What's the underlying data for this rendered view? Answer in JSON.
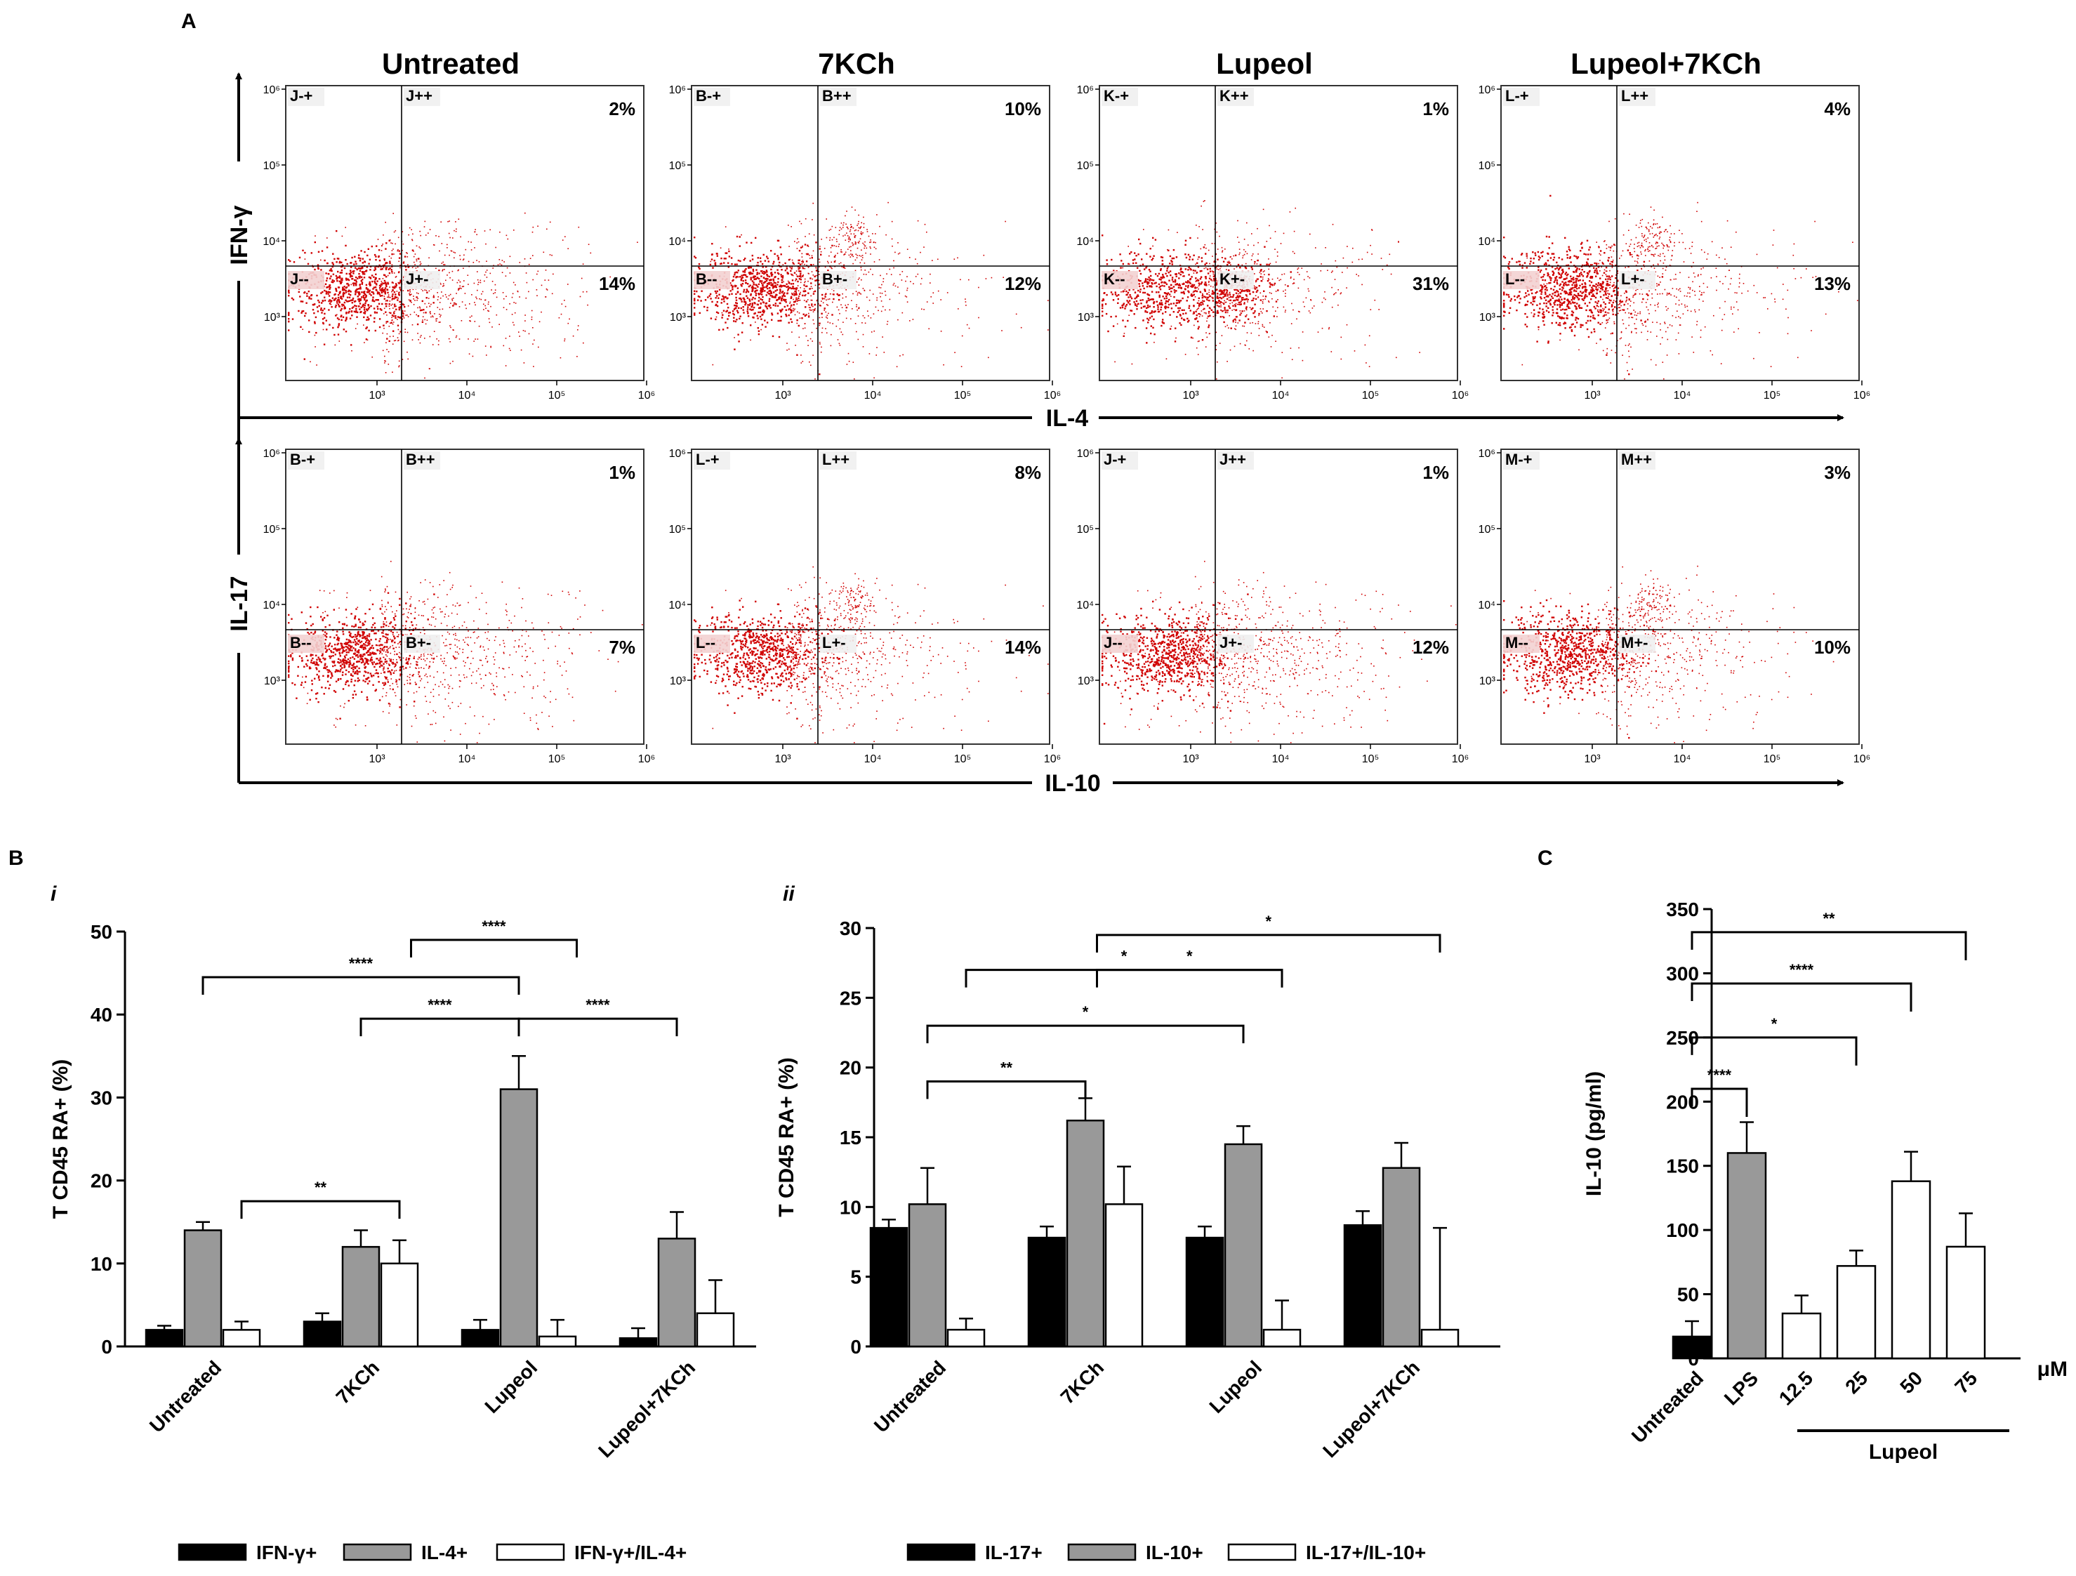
{
  "labels": {
    "A": "A",
    "B": "B",
    "C": "C",
    "i": "i",
    "ii": "ii"
  },
  "colors": {
    "dots": "#d00000",
    "black": "#000000",
    "gray": "#999999",
    "white": "#ffffff"
  },
  "flow": {
    "x_ticks": [
      "10³",
      "10⁴",
      "10⁵",
      "10⁶"
    ],
    "y_ticks": [
      "10⁶",
      "10⁵",
      "10⁴",
      "10³"
    ],
    "conditions": [
      "Untreated",
      "7KCh",
      "Lupeol",
      "Lupeol+7KCh"
    ],
    "rows": [
      {
        "y_label": "IFN-γ",
        "x_label": "IL-4",
        "panels": [
          {
            "quadrants": [
              "J-+",
              "J++",
              "J--",
              "J+-"
            ],
            "ul": "",
            "ur": "2%",
            "lr": "14%",
            "ll": ""
          },
          {
            "quadrants": [
              "B-+",
              "B++",
              "B--",
              "B+-"
            ],
            "ul": "",
            "ur": "10%",
            "lr": "12%",
            "ll": ""
          },
          {
            "quadrants": [
              "K-+",
              "K++",
              "K--",
              "K+-"
            ],
            "ul": "",
            "ur": "1%",
            "lr": "31%",
            "ll": ""
          },
          {
            "quadrants": [
              "L-+",
              "L++",
              "L--",
              "L+-"
            ],
            "ul": "",
            "ur": "4%",
            "lr": "13%",
            "ll": ""
          }
        ]
      },
      {
        "y_label": "IL-17",
        "x_label": "IL-10",
        "panels": [
          {
            "quadrants": [
              "B-+",
              "B++",
              "B--",
              "B+-"
            ],
            "ul": "",
            "ur": "1%",
            "lr": "7%",
            "ll": ""
          },
          {
            "quadrants": [
              "L-+",
              "L++",
              "L--",
              "L+-"
            ],
            "ul": "",
            "ur": "8%",
            "lr": "14%",
            "ll": ""
          },
          {
            "quadrants": [
              "J-+",
              "J++",
              "J--",
              "J+-"
            ],
            "ul": "",
            "ur": "1%",
            "lr": "12%",
            "ll": ""
          },
          {
            "quadrants": [
              "M-+",
              "M++",
              "M--",
              "M+-"
            ],
            "ul": "",
            "ur": "3%",
            "lr": "10%",
            "ll": ""
          }
        ]
      }
    ]
  },
  "chart_data": [
    {
      "id": "Bi",
      "type": "bar",
      "ylabel": "T CD45 RA+ (%)",
      "ylim": [
        0,
        50
      ],
      "yticks": [
        0,
        10,
        20,
        30,
        40,
        50
      ],
      "categories": [
        "Untreated",
        "7KCh",
        "Lupeol",
        "Lupeol+7KCh"
      ],
      "series": [
        {
          "name": "IFN-γ+",
          "color": "#000000",
          "values": [
            2,
            3,
            2,
            1
          ],
          "errors": [
            0.5,
            1,
            1.2,
            1.2
          ]
        },
        {
          "name": "IL-4+",
          "color": "#999999",
          "values": [
            14,
            12,
            31,
            13
          ],
          "errors": [
            1,
            2,
            4,
            3.2
          ]
        },
        {
          "name": "IFN-γ+/IL-4+",
          "color": "#ffffff",
          "values": [
            2,
            10,
            1.2,
            4
          ],
          "errors": [
            1,
            2.8,
            2,
            4
          ]
        }
      ],
      "significance": [
        {
          "text": "**",
          "from": [
            0,
            2
          ],
          "to": [
            1,
            2
          ],
          "y": 17.5
        },
        {
          "text": "****",
          "from": [
            0,
            1
          ],
          "to": [
            2,
            1
          ],
          "y": 44.5
        },
        {
          "text": "****",
          "from": [
            1,
            1
          ],
          "to": [
            2,
            1
          ],
          "y": 39.5
        },
        {
          "text": "****",
          "from": [
            2,
            1
          ],
          "to": [
            3,
            1
          ],
          "y": 39.5
        },
        {
          "text": "****",
          "from": [
            1,
            2.3
          ],
          "to": [
            2,
            2.5
          ],
          "y": 49
        }
      ]
    },
    {
      "id": "Bii",
      "type": "bar",
      "ylabel": "T CD45 RA+ (%)",
      "ylim": [
        0,
        30
      ],
      "yticks": [
        0,
        5,
        10,
        15,
        20,
        25,
        30
      ],
      "categories": [
        "Untreated",
        "7KCh",
        "Lupeol",
        "Lupeol+7KCh"
      ],
      "series": [
        {
          "name": "IL-17+",
          "color": "#000000",
          "values": [
            8.5,
            7.8,
            7.8,
            8.7
          ],
          "errors": [
            0.6,
            0.8,
            0.8,
            1
          ]
        },
        {
          "name": "IL-10+",
          "color": "#999999",
          "values": [
            10.2,
            16.2,
            14.5,
            12.8
          ],
          "errors": [
            2.6,
            1.6,
            1.3,
            1.8
          ]
        },
        {
          "name": "IL-17+/IL-10+",
          "color": "#ffffff",
          "values": [
            1.2,
            10.2,
            1.2,
            1.2
          ],
          "errors": [
            0.8,
            2.7,
            2.1,
            7.3
          ]
        }
      ],
      "significance": [
        {
          "text": "**",
          "from": [
            0,
            1
          ],
          "to": [
            1,
            1
          ],
          "y": 19
        },
        {
          "text": "*",
          "from": [
            0,
            1
          ],
          "to": [
            2,
            1
          ],
          "y": 23
        },
        {
          "text": "*",
          "from": [
            0,
            2
          ],
          "to": [
            2,
            2
          ],
          "y": 27
        },
        {
          "text": "*",
          "from": [
            1,
            1.3
          ],
          "to": [
            2,
            2
          ],
          "y": 27
        },
        {
          "text": "*",
          "from": [
            1,
            1.3
          ],
          "to": [
            3,
            2
          ],
          "y": 29.5
        }
      ]
    },
    {
      "id": "C",
      "type": "bar",
      "ylabel": "IL-10 (pg/ml)",
      "ylim": [
        0,
        350
      ],
      "yticks": [
        0,
        50,
        100,
        150,
        200,
        250,
        300,
        350
      ],
      "categories": [
        "Untreated",
        "LPS",
        "12.5",
        "25",
        "50",
        "75"
      ],
      "values": [
        17,
        160,
        35,
        72,
        138,
        87
      ],
      "errors": [
        12,
        24,
        14,
        12,
        23,
        26
      ],
      "colors": [
        "#000000",
        "#999999",
        "#ffffff",
        "#ffffff",
        "#ffffff",
        "#ffffff"
      ],
      "unit": "μM",
      "group_label": "Lupeol",
      "significance": [
        {
          "text": "****",
          "from": 0,
          "to": 1,
          "y": 210
        },
        {
          "text": "*",
          "from": 0,
          "to": 3,
          "y": 250
        },
        {
          "text": "****",
          "from": 0,
          "to": 4,
          "y": 292
        },
        {
          "text": "**",
          "from": 0,
          "to": 5,
          "y": 332
        }
      ]
    }
  ]
}
